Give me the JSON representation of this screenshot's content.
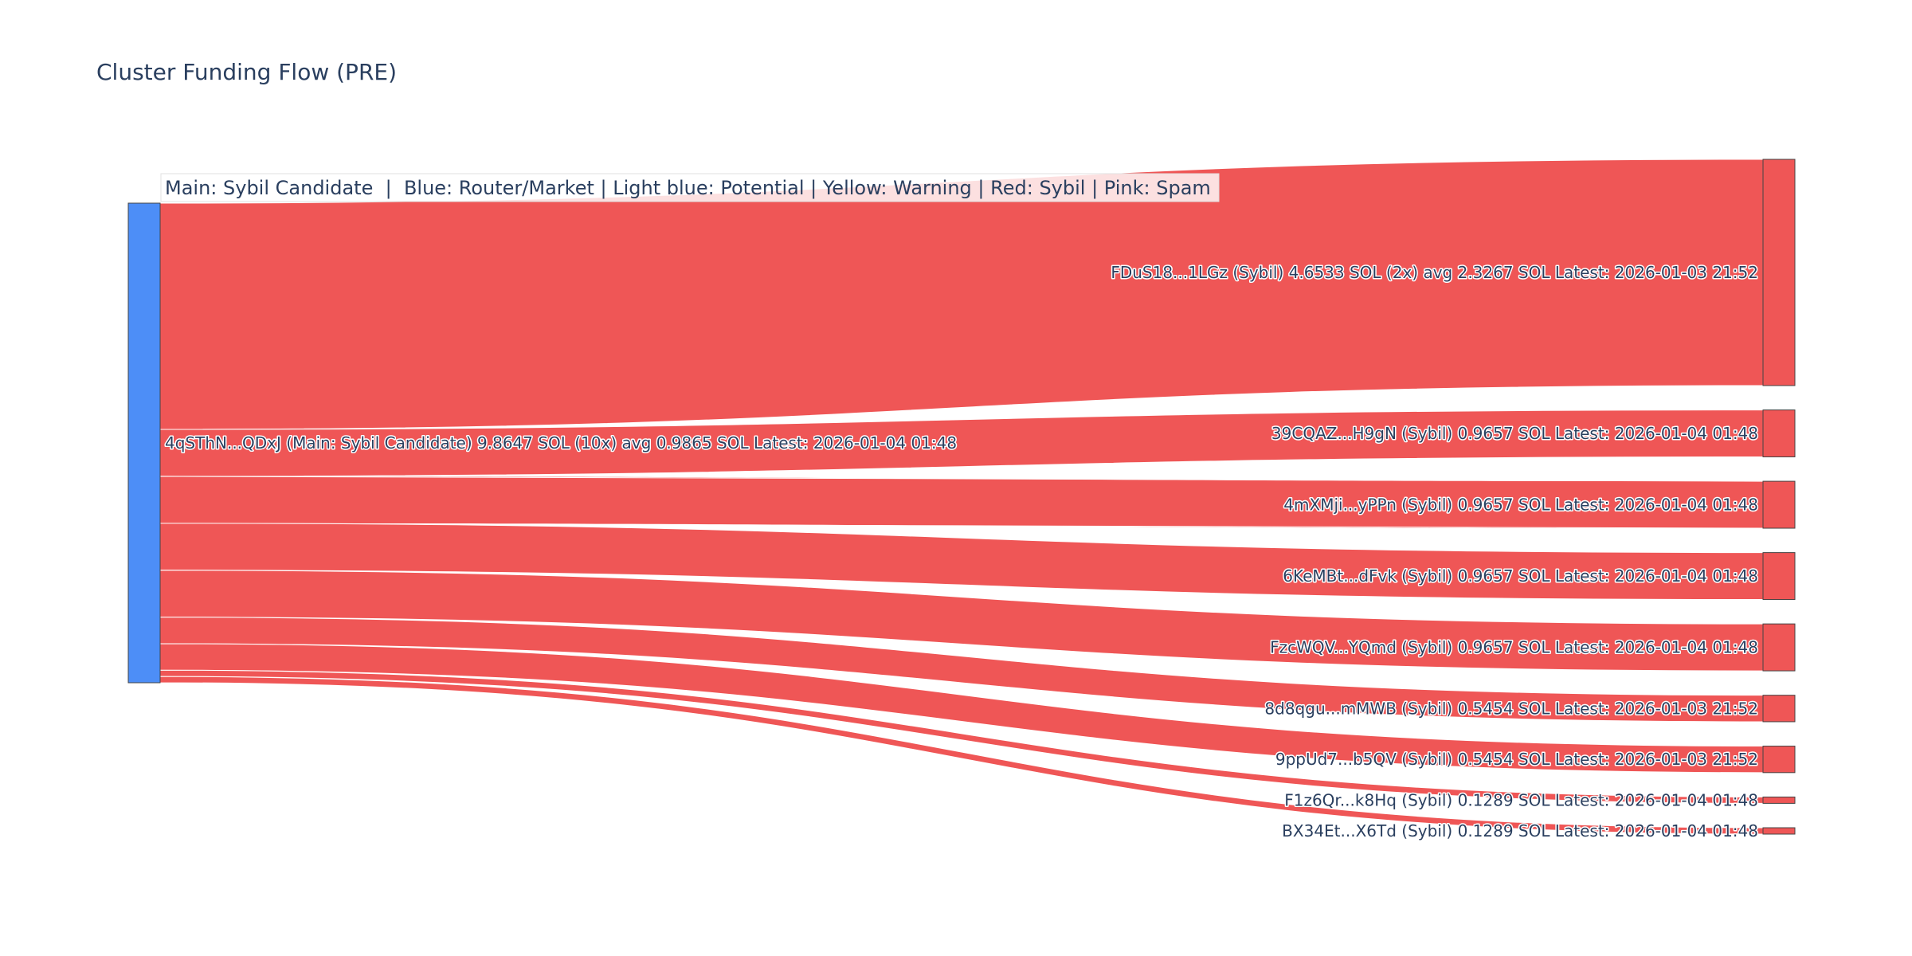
{
  "chart_data": {
    "type": "sankey",
    "title": "Cluster Funding Flow (PRE)",
    "legend_text": "Main: Sybil Candidate  |  Blue: Router/Market | Light blue: Potential | Yellow: Warning | Red: Sybil | Pink: Spam",
    "colors": {
      "source_node": "#4d8ef7",
      "target_node": "#ef5656",
      "link": "#ef5656",
      "node_border": "#444444"
    },
    "source": {
      "label": "4qSThN...QDxJ (Main: Sybil Candidate) 9.8647 SOL (10x) avg 0.9865 SOL Latest: 2026-01-04 01:48",
      "value": 9.8647
    },
    "targets": [
      {
        "label": "FDuS18...1LGz (Sybil) 4.6533 SOL (2x) avg 2.3267 SOL Latest: 2026-01-03 21:52",
        "value": 4.6533
      },
      {
        "label": "39CQAZ...H9gN (Sybil) 0.9657 SOL Latest: 2026-01-04 01:48",
        "value": 0.9657
      },
      {
        "label": "4mXMji...yPPn (Sybil) 0.9657 SOL Latest: 2026-01-04 01:48",
        "value": 0.9657
      },
      {
        "label": "6KeMBt...dFvk (Sybil) 0.9657 SOL Latest: 2026-01-04 01:48",
        "value": 0.9657
      },
      {
        "label": "FzcWQV...YQmd (Sybil) 0.9657 SOL Latest: 2026-01-04 01:48",
        "value": 0.9657
      },
      {
        "label": "8d8qgu...mMWB (Sybil) 0.5454 SOL Latest: 2026-01-03 21:52",
        "value": 0.5454
      },
      {
        "label": "9ppUd7...b5QV (Sybil) 0.5454 SOL Latest: 2026-01-03 21:52",
        "value": 0.5454
      },
      {
        "label": "F1z6Qr...k8Hq (Sybil) 0.1289 SOL Latest: 2026-01-04 01:48",
        "value": 0.1289
      },
      {
        "label": "BX34Et...X6Td (Sybil) 0.1289 SOL Latest: 2026-01-04 01:48",
        "value": 0.1289
      }
    ]
  }
}
